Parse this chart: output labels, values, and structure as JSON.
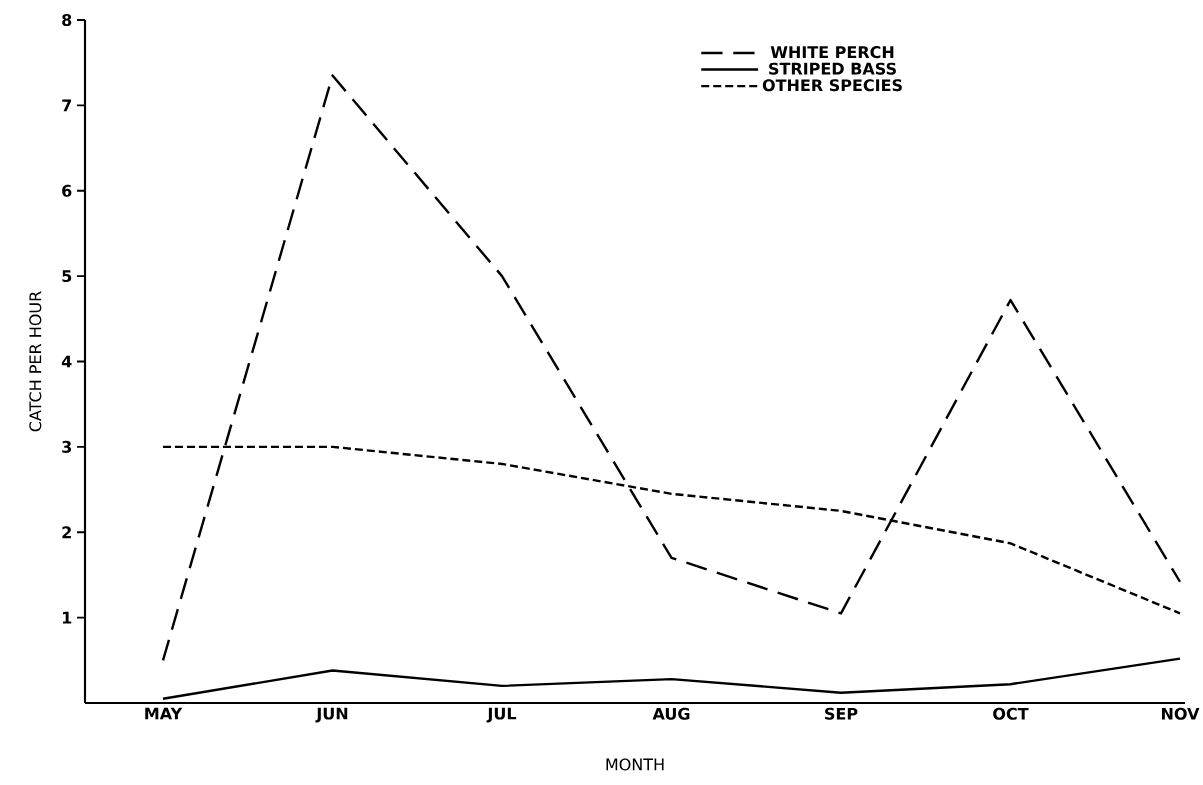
{
  "chart_data": {
    "type": "line",
    "xlabel": "MONTH",
    "ylabel": "CATCH PER HOUR",
    "categories": [
      "MAY",
      "JUN",
      "JUL",
      "AUG",
      "SEP",
      "OCT",
      "NOV"
    ],
    "series": [
      {
        "name": "WHITE PERCH",
        "color": "#000000",
        "line_style": "dashed",
        "values": [
          0.5,
          7.35,
          5.0,
          1.7,
          1.05,
          4.72,
          1.42
        ]
      },
      {
        "name": "STRIPED BASS",
        "color": "#000000",
        "line_style": "solid",
        "values": [
          0.05,
          0.38,
          0.2,
          0.28,
          0.12,
          0.22,
          0.52
        ]
      },
      {
        "name": "OTHER SPECIES",
        "color": "#000000",
        "line_style": "dashed",
        "values": [
          3.0,
          3.0,
          2.8,
          2.45,
          2.25,
          1.87,
          1.05
        ]
      }
    ],
    "ylim": [
      0,
      8
    ],
    "yticks": [
      1,
      2,
      3,
      4,
      5,
      6,
      7,
      8
    ],
    "legend": "top right",
    "grid": false,
    "marker": "none"
  }
}
